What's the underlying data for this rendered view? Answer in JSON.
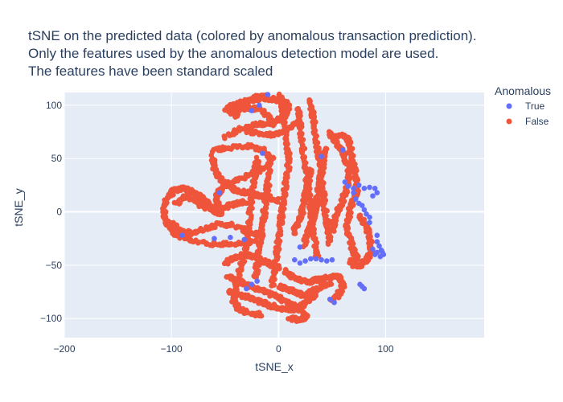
{
  "chart_data": {
    "type": "scatter",
    "title_lines": [
      "tSNE on the predicted data (colored by anomalous transaction prediction).",
      "Only the features used by the anomalous detection model are used.",
      "The features have been standard scaled"
    ],
    "xlabel": "tSNE_x",
    "ylabel": "tSNE_y",
    "xlim": [
      -200,
      192
    ],
    "ylim": [
      -118,
      112
    ],
    "xticks": [
      -200,
      -100,
      0,
      100
    ],
    "yticks": [
      -100,
      -50,
      0,
      50,
      100
    ],
    "xtick_labels": [
      "−200",
      "−100",
      "0",
      "100"
    ],
    "ytick_labels": [
      "−100",
      "−50",
      "0",
      "50",
      "100"
    ],
    "grid": true,
    "legend": {
      "title": "Anomalous",
      "placement": "top-right"
    },
    "background_color": "#e5ecf6",
    "series": [
      {
        "name": "True",
        "color": "#636efa",
        "points": [
          [
            62,
            28
          ],
          [
            65,
            24
          ],
          [
            70,
            22
          ],
          [
            75,
            25
          ],
          [
            80,
            22
          ],
          [
            85,
            23
          ],
          [
            90,
            22
          ],
          [
            92,
            18
          ],
          [
            88,
            15
          ],
          [
            70,
            18
          ],
          [
            72,
            12
          ],
          [
            75,
            8
          ],
          [
            78,
            6
          ],
          [
            80,
            2
          ],
          [
            82,
            -2
          ],
          [
            85,
            -5
          ],
          [
            92,
            -22
          ],
          [
            92,
            -28
          ],
          [
            94,
            -32
          ],
          [
            96,
            -36
          ],
          [
            98,
            -40
          ],
          [
            95,
            -42
          ],
          [
            90,
            -40
          ],
          [
            88,
            -35
          ],
          [
            92,
            -38
          ],
          [
            97,
            -38
          ],
          [
            76,
            -68
          ],
          [
            78,
            -70
          ],
          [
            80,
            -72
          ],
          [
            -55,
            18
          ],
          [
            -32,
            -26
          ],
          [
            -45,
            -24
          ],
          [
            -25,
            -68
          ],
          [
            -30,
            -72
          ],
          [
            -20,
            -65
          ],
          [
            15,
            -45
          ],
          [
            20,
            -48
          ],
          [
            25,
            -46
          ],
          [
            30,
            -44
          ],
          [
            35,
            -44
          ],
          [
            40,
            -45
          ],
          [
            45,
            -46
          ],
          [
            50,
            -45
          ],
          [
            20,
            -33
          ],
          [
            48,
            -82
          ],
          [
            52,
            -85
          ],
          [
            85,
            -10
          ],
          [
            -10,
            110
          ],
          [
            -18,
            100
          ],
          [
            -25,
            95
          ],
          [
            -90,
            -22
          ],
          [
            -60,
            -25
          ],
          [
            -15,
            55
          ],
          [
            40,
            52
          ],
          [
            60,
            58
          ]
        ]
      },
      {
        "name": "False",
        "color": "#ef553b",
        "points": []
      }
    ]
  }
}
